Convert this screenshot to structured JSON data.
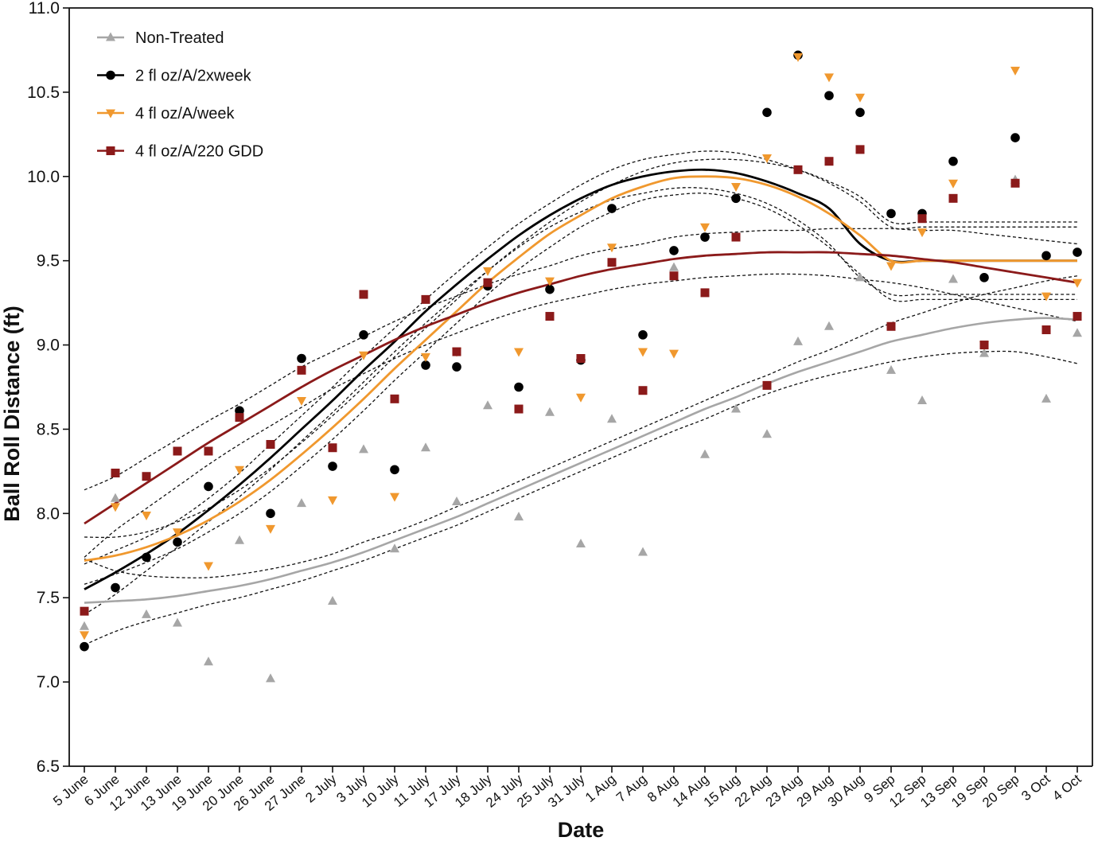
{
  "chart_data": {
    "type": "scatter",
    "xlabel": "Date",
    "ylabel": "Ball Roll Distance (ft)",
    "ylim": [
      6.5,
      11.0
    ],
    "yticks": [
      6.5,
      7.0,
      7.5,
      8.0,
      8.5,
      9.0,
      9.5,
      10.0,
      10.5,
      11.0
    ],
    "categories": [
      "5 June",
      "6 June",
      "12 June",
      "13 June",
      "19 June",
      "20 June",
      "26 June",
      "27 June",
      "2 July",
      "3 July",
      "10 July",
      "11 July",
      "17 July",
      "18 July",
      "24 July",
      "25 July",
      "31 July",
      "1 Aug",
      "7 Aug",
      "8 Aug",
      "14 Aug",
      "15 Aug",
      "22 Aug",
      "23 Aug",
      "29 Aug",
      "30 Aug",
      "9 Sep",
      "12 Sep",
      "13 Sep",
      "19 Sep",
      "20 Sep",
      "3 Oct",
      "4 Oct"
    ],
    "grid": false,
    "legend_position": "top-left",
    "series": [
      {
        "name": "Non-Treated",
        "marker": "triangle-up",
        "color": "#a6a6a6",
        "values": [
          7.33,
          8.09,
          7.4,
          7.35,
          7.12,
          7.84,
          7.02,
          8.06,
          7.48,
          8.38,
          7.79,
          8.39,
          8.07,
          8.64,
          7.98,
          8.6,
          7.82,
          8.56,
          7.77,
          9.46,
          8.35,
          8.62,
          8.47,
          9.02,
          9.11,
          9.4,
          8.85,
          8.67,
          9.39,
          8.95,
          9.98,
          8.68,
          9.07
        ],
        "fit": [
          7.47,
          7.48,
          7.49,
          7.51,
          7.54,
          7.57,
          7.61,
          7.66,
          7.71,
          7.77,
          7.84,
          7.91,
          7.98,
          8.06,
          8.14,
          8.22,
          8.3,
          8.38,
          8.46,
          8.54,
          8.62,
          8.69,
          8.77,
          8.84,
          8.9,
          8.96,
          9.02,
          9.06,
          9.1,
          9.13,
          9.15,
          9.16,
          9.15
        ],
        "ci_lower": [
          7.22,
          7.3,
          7.36,
          7.41,
          7.46,
          7.5,
          7.55,
          7.6,
          7.66,
          7.72,
          7.79,
          7.86,
          7.93,
          8.01,
          8.09,
          8.17,
          8.25,
          8.33,
          8.41,
          8.49,
          8.56,
          8.64,
          8.71,
          8.77,
          8.82,
          8.86,
          8.9,
          8.93,
          8.95,
          8.96,
          8.96,
          8.93,
          8.89
        ],
        "ci_upper": [
          7.73,
          7.66,
          7.63,
          7.62,
          7.62,
          7.64,
          7.67,
          7.71,
          7.76,
          7.83,
          7.89,
          7.96,
          8.04,
          8.11,
          8.19,
          8.27,
          8.35,
          8.43,
          8.51,
          8.59,
          8.67,
          8.75,
          8.82,
          8.9,
          8.97,
          9.05,
          9.13,
          9.19,
          9.25,
          9.3,
          9.34,
          9.38,
          9.41
        ]
      },
      {
        "name": "2 fl oz/A/2xweek",
        "marker": "circle",
        "color": "#000000",
        "values": [
          7.21,
          7.56,
          7.74,
          7.83,
          8.16,
          8.61,
          8.0,
          8.92,
          8.28,
          9.06,
          8.26,
          8.88,
          8.87,
          9.35,
          8.75,
          9.33,
          8.91,
          9.81,
          9.06,
          9.56,
          9.64,
          9.87,
          10.38,
          10.72,
          10.48,
          10.38,
          9.78,
          9.78,
          10.09,
          9.4,
          10.23,
          9.53,
          9.55
        ],
        "fit": [
          7.55,
          7.65,
          7.76,
          7.88,
          8.02,
          8.17,
          8.33,
          8.5,
          8.67,
          8.85,
          9.02,
          9.2,
          9.36,
          9.51,
          9.65,
          9.77,
          9.87,
          9.95,
          10.0,
          10.03,
          10.04,
          10.02,
          9.97,
          9.9,
          9.81,
          9.6,
          9.5,
          9.5,
          9.5,
          9.5,
          9.5,
          9.5,
          9.5
        ],
        "ci_lower": [
          7.4,
          7.52,
          7.66,
          7.8,
          7.95,
          8.1,
          8.26,
          8.43,
          8.6,
          8.78,
          8.96,
          9.13,
          9.29,
          9.44,
          9.58,
          9.7,
          9.79,
          9.86,
          9.9,
          9.93,
          9.93,
          9.9,
          9.84,
          9.74,
          9.6,
          9.4,
          9.3,
          9.3,
          9.3,
          9.3,
          9.3,
          9.3,
          9.3
        ],
        "ci_upper": [
          7.7,
          7.78,
          7.86,
          7.96,
          8.09,
          8.24,
          8.41,
          8.58,
          8.75,
          8.93,
          9.1,
          9.27,
          9.43,
          9.58,
          9.72,
          9.84,
          9.95,
          10.04,
          10.1,
          10.13,
          10.15,
          10.14,
          10.1,
          10.04,
          9.96,
          9.85,
          9.7,
          9.7,
          9.7,
          9.7,
          9.7,
          9.7,
          9.7
        ]
      },
      {
        "name": "4 fl oz/A/week",
        "marker": "triangle-down",
        "color": "#f0982e",
        "values": [
          7.28,
          8.04,
          7.99,
          7.89,
          7.69,
          8.26,
          7.91,
          8.67,
          8.08,
          8.94,
          8.1,
          8.93,
          8.96,
          9.44,
          8.96,
          9.38,
          8.69,
          9.58,
          8.96,
          8.95,
          9.7,
          9.94,
          10.11,
          10.71,
          10.59,
          10.47,
          9.47,
          9.67,
          9.96,
          9.0,
          10.63,
          9.29,
          9.37
        ],
        "fit": [
          7.72,
          7.75,
          7.8,
          7.87,
          7.96,
          8.07,
          8.2,
          8.35,
          8.51,
          8.68,
          8.86,
          9.03,
          9.2,
          9.37,
          9.52,
          9.66,
          9.77,
          9.87,
          9.94,
          9.99,
          10.0,
          9.99,
          9.95,
          9.88,
          9.78,
          9.65,
          9.5,
          9.5,
          9.5,
          9.5,
          9.5,
          9.5,
          9.5
        ],
        "ci_lower": [
          7.58,
          7.64,
          7.71,
          7.79,
          7.89,
          8.0,
          8.13,
          8.28,
          8.44,
          8.61,
          8.79,
          8.96,
          9.13,
          9.3,
          9.45,
          9.58,
          9.7,
          9.79,
          9.86,
          9.89,
          9.9,
          9.87,
          9.81,
          9.71,
          9.58,
          9.42,
          9.27,
          9.27,
          9.27,
          9.27,
          9.27,
          9.27,
          9.27
        ],
        "ci_upper": [
          7.86,
          7.86,
          7.89,
          7.95,
          8.03,
          8.14,
          8.27,
          8.42,
          8.58,
          8.75,
          8.93,
          9.1,
          9.27,
          9.44,
          9.59,
          9.73,
          9.85,
          9.95,
          10.03,
          10.08,
          10.1,
          10.1,
          10.08,
          10.04,
          9.97,
          9.88,
          9.73,
          9.73,
          9.73,
          9.73,
          9.73,
          9.73,
          9.73
        ]
      },
      {
        "name": "4 fl oz/A/220 GDD",
        "marker": "square",
        "color": "#8b1a1a",
        "values": [
          7.42,
          8.24,
          8.22,
          8.37,
          8.37,
          8.57,
          8.41,
          8.85,
          8.39,
          9.3,
          8.68,
          9.27,
          8.96,
          9.37,
          8.62,
          9.17,
          8.92,
          9.49,
          8.73,
          9.41,
          9.31,
          9.64,
          8.76,
          10.04,
          10.09,
          10.16,
          9.11,
          9.75,
          9.87,
          9.0,
          9.96,
          9.09,
          9.17
        ],
        "fit": [
          7.94,
          8.06,
          8.18,
          8.3,
          8.42,
          8.53,
          8.64,
          8.75,
          8.85,
          8.94,
          9.03,
          9.11,
          9.18,
          9.25,
          9.31,
          9.36,
          9.41,
          9.45,
          9.48,
          9.51,
          9.53,
          9.54,
          9.55,
          9.55,
          9.55,
          9.54,
          9.53,
          9.51,
          9.49,
          9.46,
          9.43,
          9.4,
          9.37
        ],
        "ci_lower": [
          7.74,
          7.9,
          8.03,
          8.16,
          8.29,
          8.41,
          8.52,
          8.63,
          8.74,
          8.83,
          8.92,
          9.0,
          9.07,
          9.14,
          9.2,
          9.25,
          9.29,
          9.33,
          9.36,
          9.38,
          9.4,
          9.41,
          9.42,
          9.42,
          9.41,
          9.39,
          9.37,
          9.34,
          9.3,
          9.26,
          9.22,
          9.18,
          9.14
        ],
        "ci_upper": [
          8.14,
          8.22,
          8.33,
          8.44,
          8.55,
          8.65,
          8.76,
          8.87,
          8.96,
          9.05,
          9.14,
          9.22,
          9.29,
          9.36,
          9.42,
          9.47,
          9.53,
          9.57,
          9.6,
          9.64,
          9.66,
          9.67,
          9.68,
          9.68,
          9.69,
          9.69,
          9.69,
          9.68,
          9.68,
          9.66,
          9.64,
          9.62,
          9.6
        ]
      }
    ]
  }
}
